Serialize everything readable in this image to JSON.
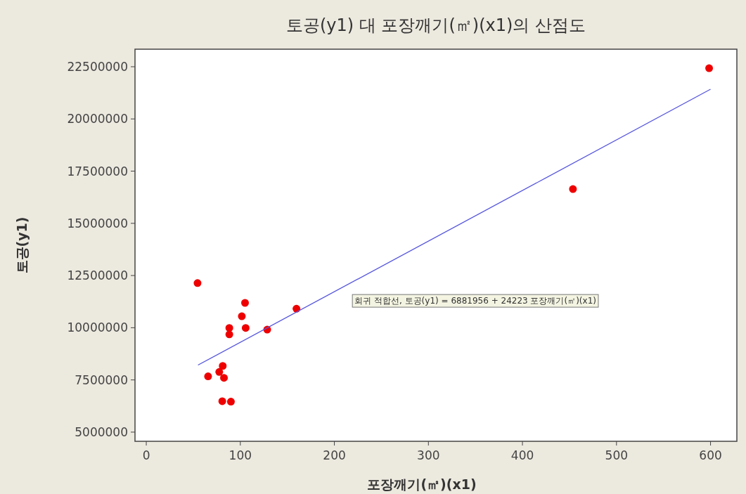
{
  "chart_data": {
    "type": "scatter",
    "title": "토공(y1) 대 포장깨기(㎡)(x1)의 산점도",
    "xlabel": "포장깨기(㎡)(x1)",
    "ylabel": "토공(y1)",
    "annotations": [
      "회귀 적합선, 토공(y1) =  6881956 + 24223 포장깨기(㎡)(x1)"
    ],
    "xlim": [
      -12,
      628
    ],
    "ylim": [
      4560000,
      23340000
    ],
    "xticks": [
      0,
      100,
      200,
      300,
      400,
      500,
      600
    ],
    "yticks": [
      5000000,
      7500000,
      10000000,
      12500000,
      15000000,
      17500000,
      20000000,
      22500000
    ],
    "grid": false,
    "series": [
      {
        "marker": "circle",
        "color": "#ee0000",
        "x": [
          54.5,
          105,
          101.6,
          88.3,
          88.3,
          105.7,
          128.6,
          159.7,
          81.3,
          77.6,
          82.6,
          65.7,
          80.8,
          90,
          598.5,
          453.7
        ],
        "values": [
          12140000,
          11190000,
          10550000,
          9990000,
          9680000,
          9990000,
          9910000,
          10910000,
          8170000,
          7880000,
          7600000,
          7670000,
          6480000,
          6460000,
          22430000,
          16640000
        ]
      },
      {
        "type": "line",
        "marker": "none",
        "color": "#5555dd",
        "x": [
          55,
          600
        ],
        "values": [
          8210000,
          21420000
        ]
      }
    ]
  }
}
